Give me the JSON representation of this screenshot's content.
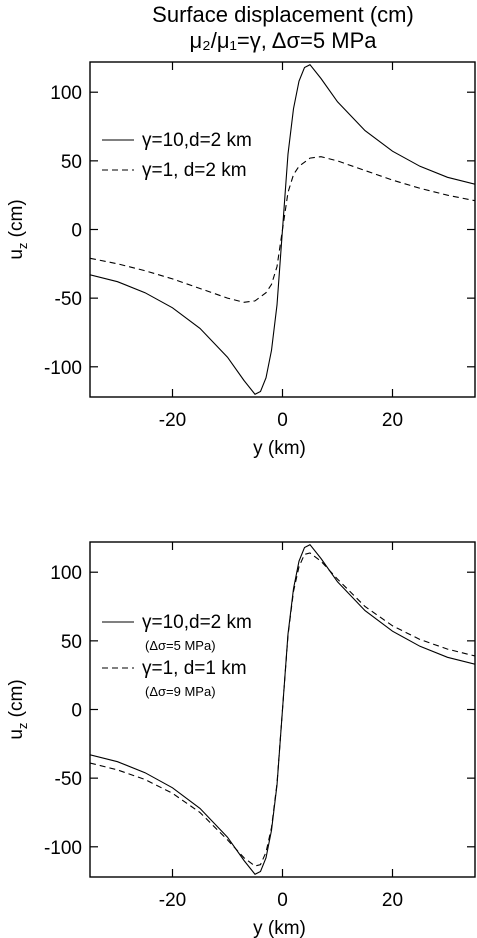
{
  "figure": {
    "title_line1": "Surface displacement (cm)",
    "title_line2": "μ₂/μ₁=γ, Δσ=5 MPa"
  },
  "chart_data": [
    {
      "type": "line",
      "xlabel": "y (km)",
      "ylabel": "u_z (cm)",
      "xlim": [
        -35,
        35
      ],
      "ylim": [
        -122,
        122
      ],
      "xticks": [
        -20,
        0,
        20
      ],
      "yticks": [
        -100,
        -50,
        0,
        50,
        100
      ],
      "grid": false,
      "legend_position": "left",
      "series": [
        {
          "name": "γ=10,d=2 km",
          "sub": "",
          "style": "solid",
          "x": [
            -35,
            -30,
            -25,
            -20,
            -15,
            -10,
            -7,
            -5,
            -4,
            -3,
            -2,
            -1,
            0,
            1,
            2,
            3,
            4,
            5,
            7,
            10,
            15,
            20,
            25,
            30,
            35
          ],
          "y": [
            -33,
            -38,
            -46,
            -57,
            -72,
            -93,
            -110,
            -120,
            -118,
            -108,
            -88,
            -55,
            0,
            55,
            88,
            108,
            118,
            120,
            110,
            93,
            72,
            57,
            46,
            38,
            33
          ]
        },
        {
          "name": "γ=1, d=2 km",
          "sub": "",
          "style": "dashed",
          "x": [
            -35,
            -30,
            -25,
            -20,
            -15,
            -10,
            -7,
            -5,
            -3,
            -2,
            -1,
            0,
            1,
            2,
            3,
            5,
            7,
            10,
            15,
            20,
            25,
            30,
            35
          ],
          "y": [
            -21,
            -25,
            -30,
            -36,
            -43,
            -50,
            -53,
            -52,
            -46,
            -40,
            -27,
            0,
            27,
            40,
            46,
            52,
            53,
            50,
            43,
            36,
            30,
            25,
            21
          ]
        }
      ]
    },
    {
      "type": "line",
      "xlabel": "y (km)",
      "ylabel": "u_z (cm)",
      "xlim": [
        -35,
        35
      ],
      "ylim": [
        -122,
        122
      ],
      "xticks": [
        -20,
        0,
        20
      ],
      "yticks": [
        -100,
        -50,
        0,
        50,
        100
      ],
      "grid": false,
      "legend_position": "left",
      "series": [
        {
          "name": "γ=10,d=2 km",
          "sub": "(Δσ=5 MPa)",
          "style": "solid",
          "x": [
            -35,
            -30,
            -25,
            -20,
            -15,
            -10,
            -7,
            -5,
            -4,
            -3,
            -2,
            -1,
            0,
            1,
            2,
            3,
            4,
            5,
            7,
            10,
            15,
            20,
            25,
            30,
            35
          ],
          "y": [
            -33,
            -38,
            -46,
            -57,
            -72,
            -93,
            -110,
            -120,
            -118,
            -108,
            -88,
            -55,
            0,
            55,
            88,
            108,
            118,
            120,
            110,
            93,
            72,
            57,
            46,
            38,
            33
          ]
        },
        {
          "name": "γ=1, d=1 km",
          "sub": "(Δσ=9 MPa)",
          "style": "dashed",
          "x": [
            -35,
            -30,
            -25,
            -20,
            -15,
            -10,
            -7,
            -5,
            -4,
            -3,
            -2,
            -1,
            0,
            1,
            2,
            3,
            4,
            5,
            7,
            10,
            15,
            20,
            25,
            30,
            35
          ],
          "y": [
            -39,
            -44,
            -51,
            -61,
            -75,
            -95,
            -108,
            -114,
            -113,
            -104,
            -86,
            -54,
            0,
            54,
            86,
            104,
            113,
            114,
            108,
            95,
            75,
            61,
            51,
            44,
            39
          ]
        }
      ]
    }
  ]
}
